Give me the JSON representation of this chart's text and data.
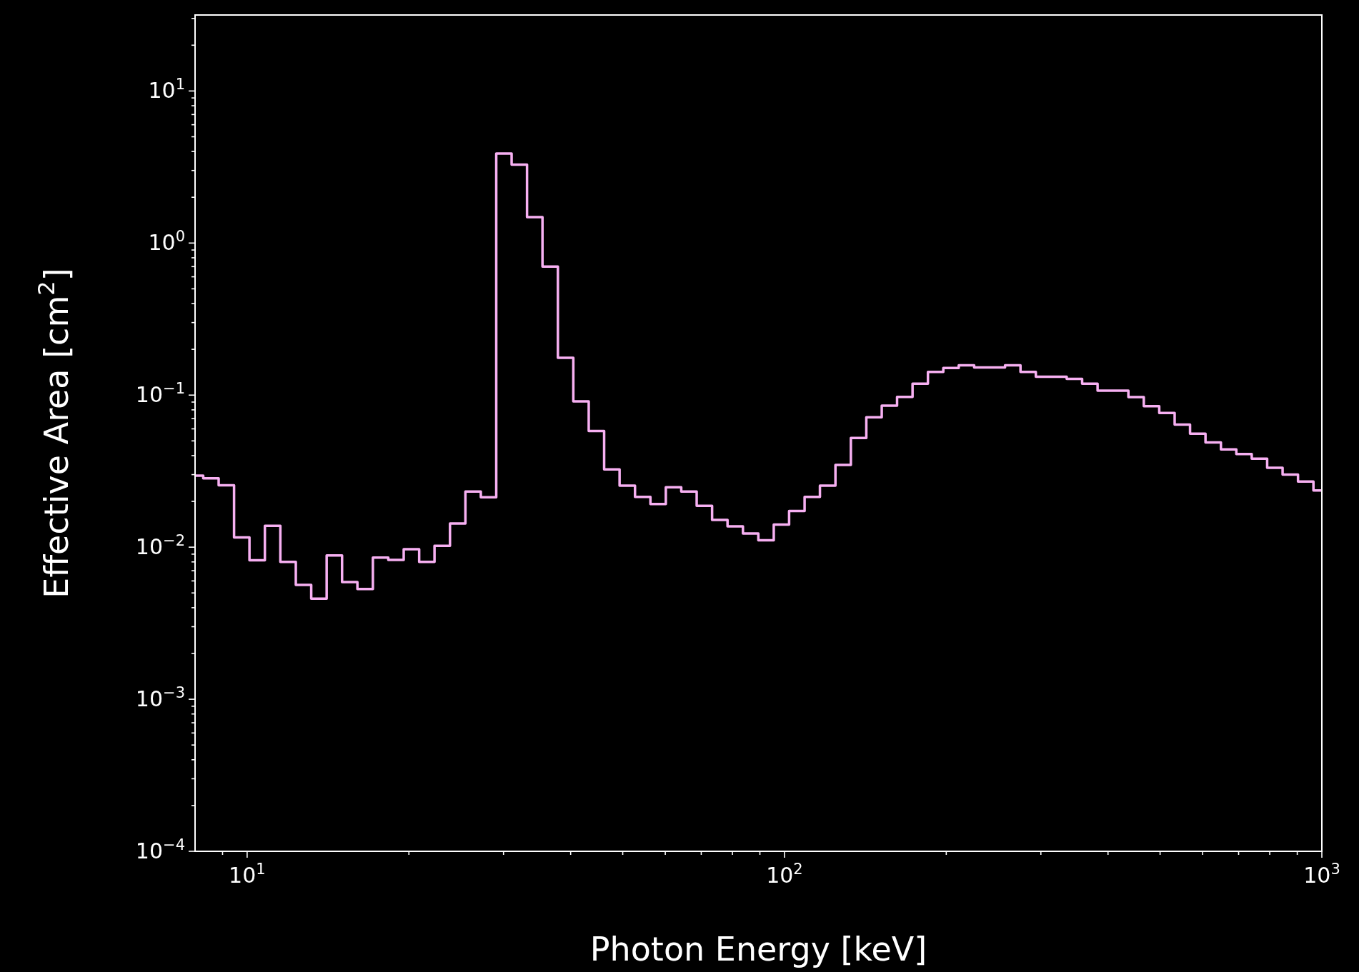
{
  "chart_data": {
    "type": "histogram",
    "xlabel": "Photon Energy [keV]",
    "ylabel": "Effective Area [cm$^{2}$]",
    "color": "#f7b0f2",
    "log": "xy",
    "xlim": [
      8,
      1000
    ],
    "ylim": [
      0.0001,
      31.6
    ],
    "xticks": [
      {
        "value": 9,
        "label": null
      },
      {
        "value": 10,
        "label": "10$^{1}$"
      },
      {
        "value": 20,
        "label": null
      },
      {
        "value": 30,
        "label": null
      },
      {
        "value": 40,
        "label": null
      },
      {
        "value": 50,
        "label": null
      },
      {
        "value": 60,
        "label": null
      },
      {
        "value": 70,
        "label": null
      },
      {
        "value": 80,
        "label": null
      },
      {
        "value": 90,
        "label": null
      },
      {
        "value": 100,
        "label": "10$^{2}$"
      },
      {
        "value": 200,
        "label": null
      },
      {
        "value": 300,
        "label": null
      },
      {
        "value": 400,
        "label": null
      },
      {
        "value": 500,
        "label": null
      },
      {
        "value": 600,
        "label": null
      },
      {
        "value": 700,
        "label": null
      },
      {
        "value": 800,
        "label": null
      },
      {
        "value": 900,
        "label": null
      },
      {
        "value": 1000,
        "label": "10$^{3}$"
      }
    ],
    "yticks": [
      {
        "value": 0.0001,
        "label": "10$^{−4}$"
      },
      {
        "value": 0.0002,
        "label": null
      },
      {
        "value": 0.0003,
        "label": null
      },
      {
        "value": 0.0004,
        "label": null
      },
      {
        "value": 0.0005,
        "label": null
      },
      {
        "value": 0.0006,
        "label": null
      },
      {
        "value": 0.0007,
        "label": null
      },
      {
        "value": 0.0008,
        "label": null
      },
      {
        "value": 0.0009,
        "label": null
      },
      {
        "value": 0.001,
        "label": "10$^{−3}$"
      },
      {
        "value": 0.002,
        "label": null
      },
      {
        "value": 0.003,
        "label": null
      },
      {
        "value": 0.004,
        "label": null
      },
      {
        "value": 0.005,
        "label": null
      },
      {
        "value": 0.006,
        "label": null
      },
      {
        "value": 0.007,
        "label": null
      },
      {
        "value": 0.008,
        "label": null
      },
      {
        "value": 0.009,
        "label": null
      },
      {
        "value": 0.01,
        "label": "10$^{−2}$"
      },
      {
        "value": 0.02,
        "label": null
      },
      {
        "value": 0.03,
        "label": null
      },
      {
        "value": 0.04,
        "label": null
      },
      {
        "value": 0.05,
        "label": null
      },
      {
        "value": 0.06,
        "label": null
      },
      {
        "value": 0.07,
        "label": null
      },
      {
        "value": 0.08,
        "label": null
      },
      {
        "value": 0.09,
        "label": null
      },
      {
        "value": 0.1,
        "label": "10$^{−1}$"
      },
      {
        "value": 0.2,
        "label": null
      },
      {
        "value": 0.3,
        "label": null
      },
      {
        "value": 0.4,
        "label": null
      },
      {
        "value": 0.5,
        "label": null
      },
      {
        "value": 0.6,
        "label": null
      },
      {
        "value": 0.7,
        "label": null
      },
      {
        "value": 0.8,
        "label": null
      },
      {
        "value": 0.9,
        "label": null
      },
      {
        "value": 1,
        "label": "10$^{0}$"
      },
      {
        "value": 2,
        "label": null
      },
      {
        "value": 3,
        "label": null
      },
      {
        "value": 4,
        "label": null
      },
      {
        "value": 5,
        "label": null
      },
      {
        "value": 6,
        "label": null
      },
      {
        "value": 7,
        "label": null
      },
      {
        "value": 8,
        "label": null
      },
      {
        "value": 9,
        "label": null
      },
      {
        "value": 10,
        "label": "10$^{1}$"
      },
      {
        "value": 20,
        "label": null
      },
      {
        "value": 30,
        "label": null
      }
    ],
    "bins": [
      8,
      8.285,
      8.851,
      9.455,
      10.1,
      10.79,
      11.53,
      12.32,
      13.16,
      14.06,
      15.02,
      16.04,
      17.14,
      18.31,
      19.56,
      20.9,
      22.32,
      23.85,
      25.48,
      27.22,
      29.08,
      31.06,
      33.18,
      35.45,
      37.87,
      40.46,
      43.22,
      46.17,
      49.33,
      52.7,
      56.3,
      60.14,
      64.25,
      68.64,
      73.33,
      78.34,
      83.69,
      89.4,
      95.51,
      102.0,
      109.0,
      116.4,
      124.4,
      132.9,
      142.0,
      151.7,
      162.0,
      173.1,
      184.9,
      197.5,
      211.0,
      225.4,
      240.8,
      257.3,
      274.9,
      293.6,
      313.7,
      335.1,
      358.0,
      382.5,
      408.6,
      436.5,
      466.3,
      498.2,
      532.2,
      568.5,
      607.4,
      648.9,
      693.2,
      740.5,
      791.1,
      845.2,
      902.9,
      964.6,
      1000
    ],
    "values": [
      0.0295,
      0.0284,
      0.0255,
      0.0116,
      0.0082,
      0.0138,
      0.008,
      0.00565,
      0.00459,
      0.00881,
      0.0059,
      0.00531,
      0.00853,
      0.00824,
      0.00971,
      0.008,
      0.0102,
      0.0143,
      0.0232,
      0.0213,
      3.88,
      3.28,
      1.48,
      0.7,
      0.176,
      0.091,
      0.058,
      0.0325,
      0.0254,
      0.0214,
      0.0192,
      0.0248,
      0.0232,
      0.0187,
      0.0151,
      0.0137,
      0.0123,
      0.0111,
      0.0141,
      0.0173,
      0.0214,
      0.0254,
      0.0347,
      0.0522,
      0.0716,
      0.0852,
      0.0972,
      0.119,
      0.142,
      0.151,
      0.157,
      0.152,
      0.152,
      0.157,
      0.142,
      0.132,
      0.132,
      0.128,
      0.119,
      0.107,
      0.107,
      0.097,
      0.0846,
      0.0762,
      0.064,
      0.0558,
      0.0488,
      0.044,
      0.041,
      0.0382,
      0.0333,
      0.03,
      0.027,
      0.0236
    ]
  }
}
